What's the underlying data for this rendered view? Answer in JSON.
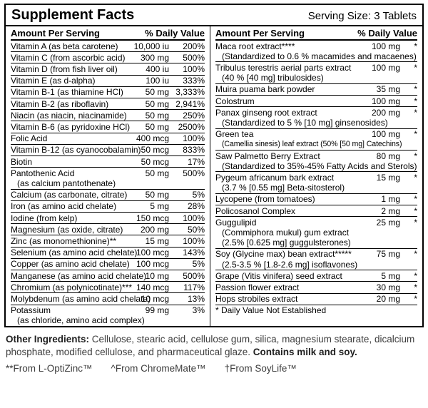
{
  "header": {
    "title": "Supplement Facts",
    "serving_size": "Serving Size: 3 Tablets"
  },
  "columns": {
    "amount_header": "Amount Per Serving",
    "dv_header": "% Daily Value"
  },
  "left": {
    "rows": [
      {
        "name": "Vitamin A (as beta carotene)",
        "amount": "10,000 iu",
        "dv": "200%",
        "subs": []
      },
      {
        "name": "Vitamin C (from ascorbic acid)",
        "amount": "300 mg",
        "dv": "500%",
        "subs": []
      },
      {
        "name": "Vitamin D (from fish liver oil)",
        "amount": "400 iu",
        "dv": "100%",
        "subs": []
      },
      {
        "name": "Vitamin E (as d-alpha)",
        "amount": "100 iu",
        "dv": "333%",
        "subs": []
      },
      {
        "name": "Vitamin B-1 (as thiamine HCl)",
        "amount": "50 mg",
        "dv": "3,333%",
        "subs": []
      },
      {
        "name": "Vitamin B-2 (as riboflavin)",
        "amount": "50 mg",
        "dv": "2,941%",
        "subs": []
      },
      {
        "name": "Niacin (as niacin, niacinamide)",
        "amount": "50 mg",
        "dv": "250%",
        "subs": []
      },
      {
        "name": "Vitamin B-6 (as pyridoxine HCl)",
        "amount": "50 mg",
        "dv": "2500%",
        "subs": []
      },
      {
        "name": "Folic Acid",
        "amount": "400 mcg",
        "dv": "100%",
        "subs": []
      },
      {
        "name": "Vitamin B-12 (as cyanocobalamin)",
        "amount": "50 mcg",
        "dv": "833%",
        "subs": []
      },
      {
        "name": "Biotin",
        "amount": "50 mcg",
        "dv": "17%",
        "subs": []
      },
      {
        "name": "Pantothenic Acid",
        "amount": "50 mg",
        "dv": "500%",
        "subs": [
          "(as calcium pantothenate)"
        ]
      },
      {
        "name": "Calcium (as carbonate, citrate)",
        "amount": "50 mg",
        "dv": "5%",
        "subs": []
      },
      {
        "name": "Iron (as amino acid chelate)",
        "amount": "5 mg",
        "dv": "28%",
        "subs": []
      },
      {
        "name": "Iodine (from kelp)",
        "amount": "150 mcg",
        "dv": "100%",
        "subs": []
      },
      {
        "name": "Magnesium (as oxide, citrate)",
        "amount": "200 mg",
        "dv": "50%",
        "subs": []
      },
      {
        "name": "Zinc (as monomethionine)**",
        "amount": "15 mg",
        "dv": "100%",
        "subs": []
      },
      {
        "name": "Selenium (as amino acid chelate)",
        "amount": "100 mcg",
        "dv": "143%",
        "subs": []
      },
      {
        "name": "Copper (as amino acid chelate)",
        "amount": "100 mcg",
        "dv": "5%",
        "subs": []
      },
      {
        "name": "Manganese (as amino acid chelate)",
        "amount": "10 mg",
        "dv": "500%",
        "subs": []
      },
      {
        "name": "Chromium (as polynicotinate)***",
        "amount": "140 mcg",
        "dv": "117%",
        "subs": []
      },
      {
        "name": "Molybdenum (as amino acid chelate)",
        "amount": "10 mcg",
        "dv": "13%",
        "subs": []
      },
      {
        "name": "Potassium",
        "amount": "99 mg",
        "dv": "3%",
        "subs": [
          "(as chloride, amino acid complex)"
        ]
      }
    ]
  },
  "right": {
    "rows": [
      {
        "name": "Maca root extract****",
        "amount": "100 mg",
        "dv": "*",
        "subs": [
          "(Standardized to 0.6 % macamides and macaenes)"
        ]
      },
      {
        "name": "Tribulus terestris aerial parts extract",
        "amount": "100 mg",
        "dv": "*",
        "subs": [
          "(40 % [40 mg] tribulosides)"
        ]
      },
      {
        "name": "Muira puama bark powder",
        "amount": "35 mg",
        "dv": "*",
        "subs": []
      },
      {
        "name": "Colostrum",
        "amount": "100 mg",
        "dv": "*",
        "subs": []
      },
      {
        "name": "Panax ginseng root extract",
        "amount": "200 mg",
        "dv": "*",
        "subs": [
          "(Standardized to 5 % [10 mg] ginsenosides)"
        ]
      },
      {
        "name": "Green tea",
        "amount": "100 mg",
        "dv": "*",
        "small": true,
        "subs": [
          "(Camellia sinesis) leaf extract (50% [50 mg] Catechins)"
        ]
      },
      {
        "name": "Saw Palmetto Berry Extract",
        "amount": "80 mg",
        "dv": "*",
        "subs": [
          "(Standardized to 35%-45% Fatty Acids and Sterols)"
        ]
      },
      {
        "name": "Pygeum africanum bark extract",
        "amount": "15 mg",
        "dv": "*",
        "subs": [
          "(3.7 % [0.55 mg] Beta-sitosterol)"
        ]
      },
      {
        "name": "Lycopene (from tomatoes)",
        "amount": "1 mg",
        "dv": "*",
        "subs": []
      },
      {
        "name": "Policosanol Complex",
        "amount": "2 mg",
        "dv": "*",
        "subs": []
      },
      {
        "name": "Guggulipid",
        "amount": "25 mg",
        "dv": "*",
        "subs": [
          "(Commiphora mukul) gum extract",
          "(2.5% [0.625 mg] guggulsterones)"
        ]
      },
      {
        "name": "Soy (Glycine max) bean extract*****",
        "amount": "75 mg",
        "dv": "*",
        "subs": [
          "(2.5-3.5 % [1.8-2.6 mg] isoflavones)"
        ]
      },
      {
        "name": "Grape (Vitis vinifera) seed extract",
        "amount": "5 mg",
        "dv": "*",
        "subs": []
      },
      {
        "name": "Passion flower extract",
        "amount": "30 mg",
        "dv": "*",
        "subs": []
      },
      {
        "name": "Hops strobiles extract",
        "amount": "20 mg",
        "dv": "*",
        "subs": []
      }
    ],
    "footer": "* Daily Value Not Established"
  },
  "bottom": {
    "other_ingredients_label": "Other Ingredients:",
    "other_ingredients_text": " Cellulose, stearic acid, cellulose gum, silica, magnesium stearate, dicalcium phosphate, modified cellulose, and pharmaceutical glaze. ",
    "contains": "Contains milk and soy.",
    "footnotes": [
      "**From L-OptiZinc™",
      "^From ChromeMate™",
      "†From SoyLife™"
    ]
  }
}
